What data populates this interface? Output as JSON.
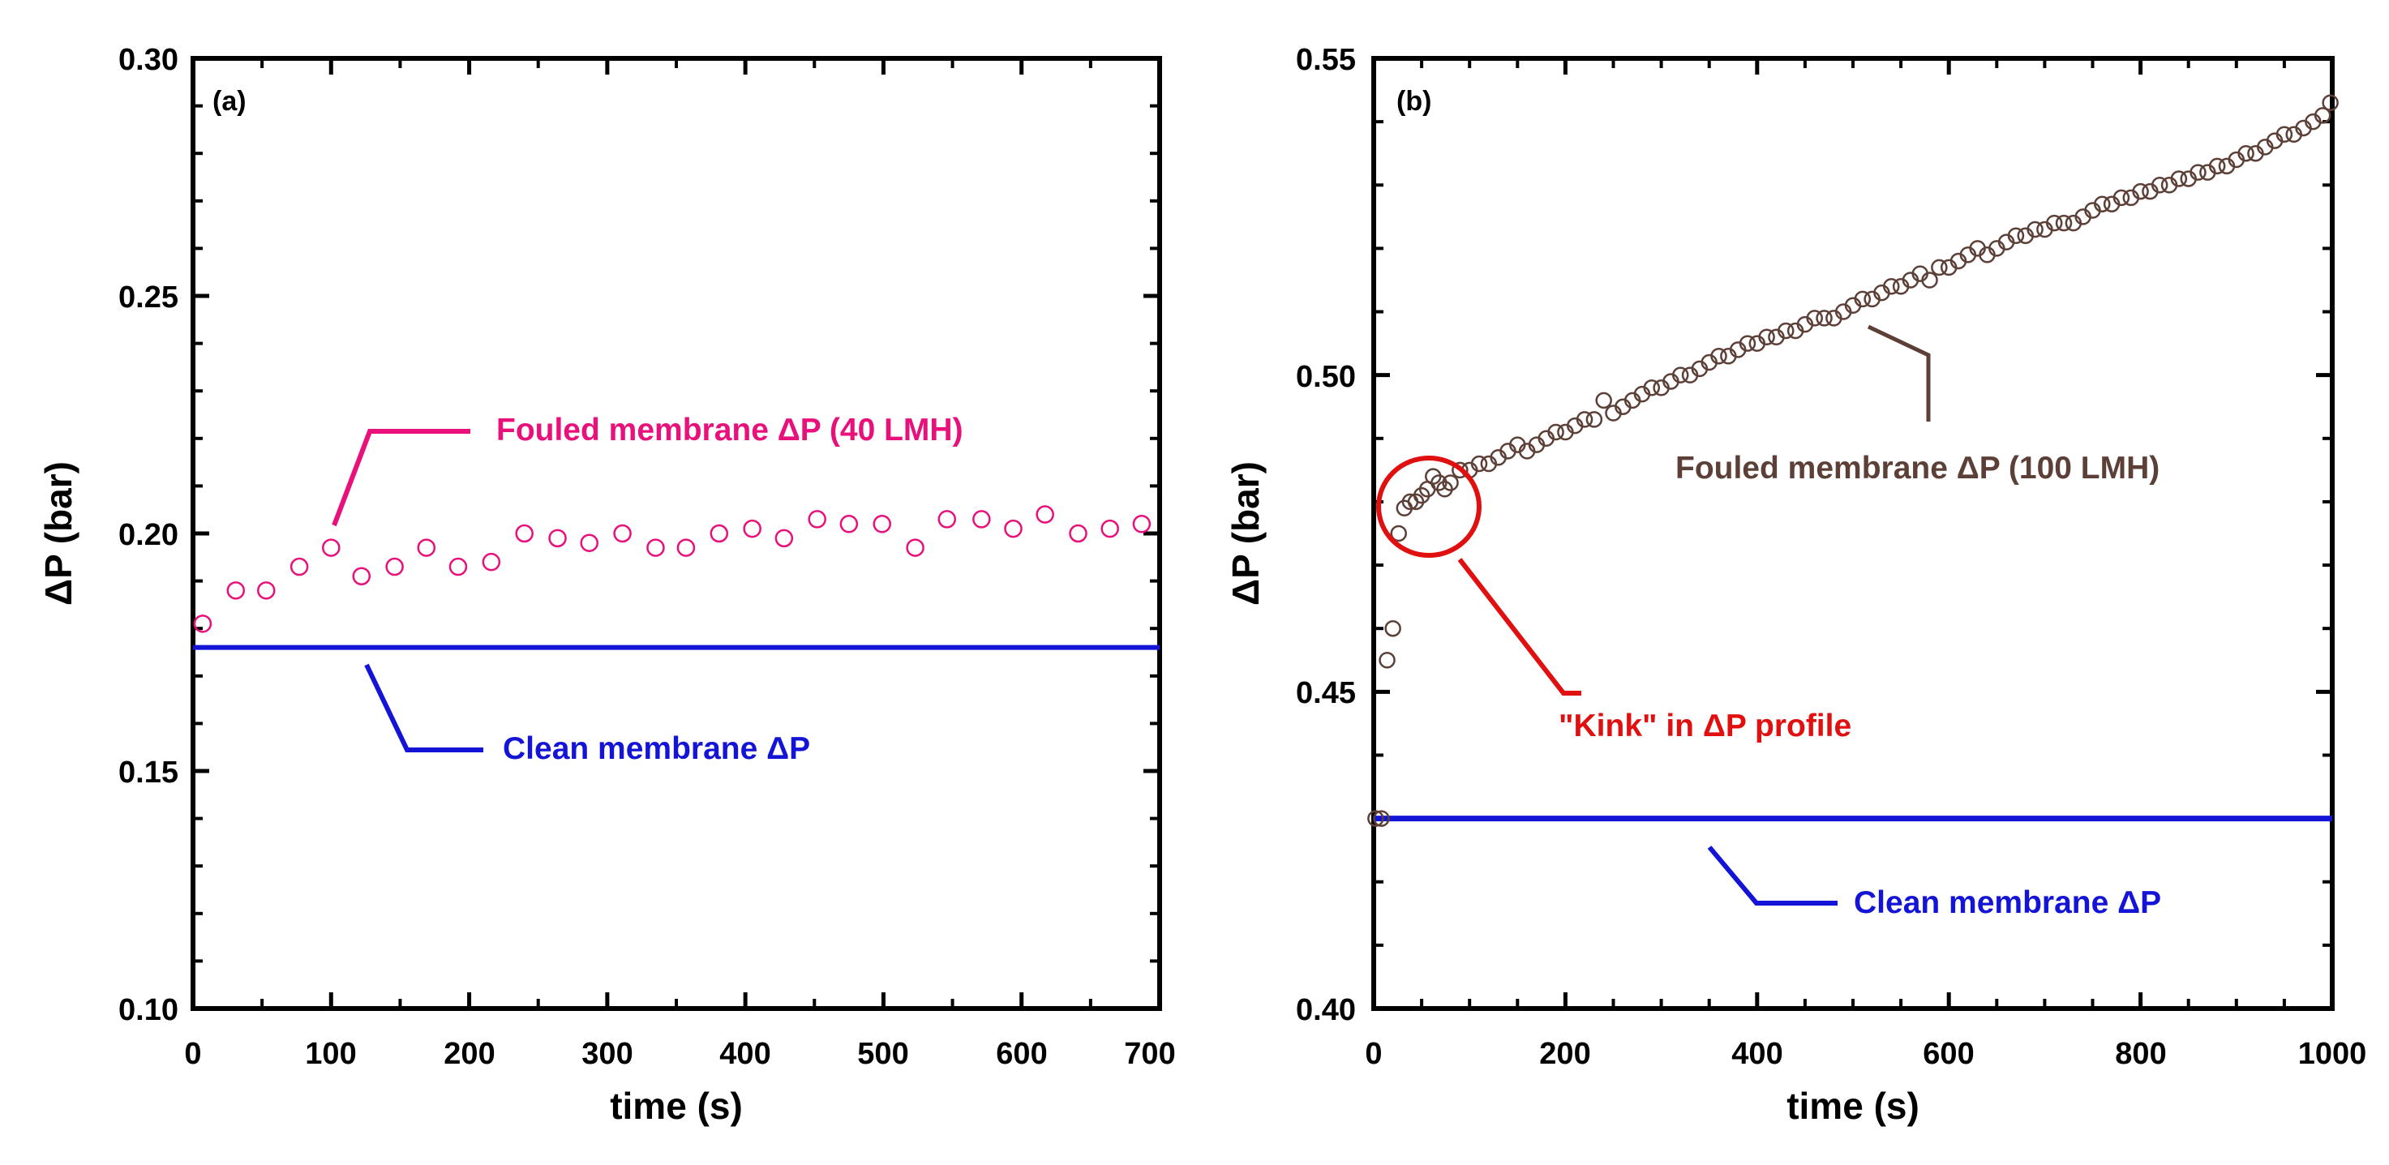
{
  "chart_data": [
    {
      "type": "scatter",
      "panel": "(a)",
      "xlabel": "time (s)",
      "ylabel": "ΔP (bar)",
      "xlim": [
        0,
        700
      ],
      "ylim": [
        0.1,
        0.3
      ],
      "xticks": [
        0,
        100,
        200,
        300,
        400,
        500,
        600,
        700
      ],
      "xtick_labels": [
        "0",
        "100",
        "200",
        "300",
        "400",
        "500",
        "600",
        "700"
      ],
      "yticks": [
        0.1,
        0.15,
        0.2,
        0.25,
        0.3
      ],
      "ytick_labels": [
        "0.10",
        "0.15",
        "0.20",
        "0.25",
        "0.30"
      ],
      "series": [
        {
          "name": "Fouled membrane ΔP (40 LMH)",
          "kind": "markers",
          "color": "#e8107a",
          "x": [
            7,
            31,
            53,
            77,
            100,
            122,
            146,
            169,
            192,
            216,
            240,
            264,
            287,
            311,
            335,
            357,
            381,
            405,
            428,
            452,
            475,
            499,
            523,
            546,
            571,
            594,
            617,
            641,
            664,
            687
          ],
          "y": [
            0.181,
            0.188,
            0.188,
            0.193,
            0.197,
            0.191,
            0.193,
            0.197,
            0.193,
            0.194,
            0.2,
            0.199,
            0.198,
            0.2,
            0.197,
            0.197,
            0.2,
            0.201,
            0.199,
            0.203,
            0.202,
            0.202,
            0.197,
            0.203,
            0.203,
            0.201,
            0.204,
            0.2,
            0.201,
            0.202
          ]
        },
        {
          "name": "Clean membrane ΔP",
          "kind": "line",
          "color": "#1414d6",
          "x": [
            0,
            700
          ],
          "y": [
            0.176,
            0.176
          ]
        }
      ],
      "annotations": [
        {
          "text": "Fouled membrane ΔP (40 LMH)",
          "color": "#e8107a",
          "target": [
            102,
            0.202
          ]
        },
        {
          "text": "Clean membrane ΔP",
          "color": "#1414d6",
          "target": [
            122,
            0.175
          ]
        }
      ]
    },
    {
      "type": "scatter",
      "panel": "(b)",
      "xlabel": "time (s)",
      "ylabel": "ΔP (bar)",
      "xlim": [
        0,
        1000
      ],
      "ylim": [
        0.4,
        0.55
      ],
      "xticks": [
        0,
        200,
        400,
        600,
        800,
        1000
      ],
      "xtick_labels": [
        "0",
        "200",
        "400",
        "600",
        "800",
        "1000"
      ],
      "yticks": [
        0.4,
        0.45,
        0.5,
        0.55
      ],
      "ytick_labels": [
        "0.40",
        "0.45",
        "0.50",
        "0.55"
      ],
      "series": [
        {
          "name": "Fouled membrane ΔP (100 LMH)",
          "kind": "markers",
          "color": "#5c4038",
          "x": [
            2,
            8,
            14,
            20,
            26,
            32,
            38,
            44,
            50,
            56,
            62,
            68,
            74,
            80,
            90,
            100,
            110,
            120,
            130,
            140,
            150,
            160,
            170,
            180,
            190,
            200,
            210,
            220,
            230,
            240,
            250,
            260,
            270,
            280,
            290,
            300,
            310,
            320,
            330,
            340,
            350,
            360,
            370,
            380,
            390,
            400,
            410,
            420,
            430,
            440,
            450,
            460,
            470,
            480,
            490,
            500,
            510,
            520,
            530,
            540,
            550,
            560,
            570,
            580,
            590,
            600,
            610,
            620,
            630,
            640,
            650,
            660,
            670,
            680,
            690,
            700,
            710,
            720,
            730,
            740,
            750,
            760,
            770,
            780,
            790,
            800,
            810,
            820,
            830,
            840,
            850,
            860,
            870,
            880,
            890,
            900,
            910,
            920,
            930,
            940,
            950,
            960,
            970,
            980,
            990,
            998
          ],
          "y": [
            0.43,
            0.43,
            0.455,
            0.46,
            0.475,
            0.479,
            0.48,
            0.48,
            0.481,
            0.482,
            0.484,
            0.483,
            0.482,
            0.483,
            0.485,
            0.485,
            0.486,
            0.486,
            0.487,
            0.488,
            0.489,
            0.488,
            0.489,
            0.49,
            0.491,
            0.491,
            0.492,
            0.493,
            0.493,
            0.496,
            0.494,
            0.495,
            0.496,
            0.497,
            0.498,
            0.498,
            0.499,
            0.5,
            0.5,
            0.501,
            0.502,
            0.503,
            0.503,
            0.504,
            0.505,
            0.505,
            0.506,
            0.506,
            0.507,
            0.507,
            0.508,
            0.509,
            0.509,
            0.509,
            0.51,
            0.511,
            0.512,
            0.512,
            0.513,
            0.514,
            0.514,
            0.515,
            0.516,
            0.515,
            0.517,
            0.517,
            0.518,
            0.519,
            0.52,
            0.519,
            0.52,
            0.521,
            0.522,
            0.522,
            0.523,
            0.523,
            0.524,
            0.524,
            0.524,
            0.525,
            0.526,
            0.527,
            0.527,
            0.528,
            0.528,
            0.529,
            0.529,
            0.53,
            0.53,
            0.531,
            0.531,
            0.532,
            0.532,
            0.533,
            0.533,
            0.534,
            0.535,
            0.535,
            0.536,
            0.537,
            0.538,
            0.538,
            0.539,
            0.54,
            0.541,
            0.543
          ]
        },
        {
          "name": "Clean membrane ΔP",
          "kind": "line",
          "color": "#1414d6",
          "x": [
            0,
            1000
          ],
          "y": [
            0.43,
            0.43
          ]
        }
      ],
      "annotations": [
        {
          "text": "Fouled membrane ΔP (100 LMH)",
          "color": "#5c4038",
          "target": [
            505,
            0.511
          ]
        },
        {
          "text": "\"Kink\" in ΔP profile",
          "color": "#e01010",
          "target": [
            90,
            0.474
          ],
          "circle_center": [
            55,
            0.48
          ]
        },
        {
          "text": "Clean membrane ΔP",
          "color": "#1414d6",
          "target": [
            355,
            0.427
          ]
        }
      ]
    }
  ]
}
